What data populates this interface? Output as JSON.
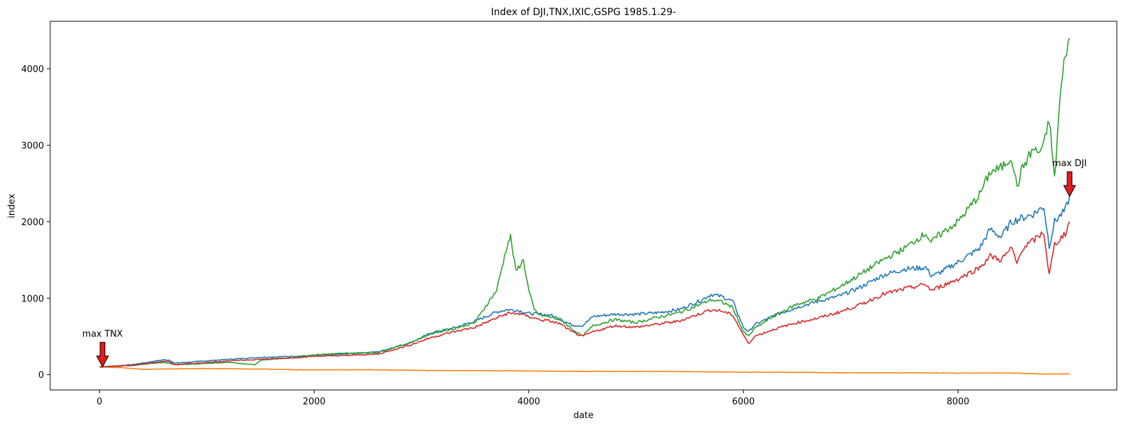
{
  "chart_data": {
    "type": "line",
    "title": "Index of DJI,TNX,IXIC,GSPG 1985.1.29-",
    "xlabel": "date",
    "ylabel": "index",
    "xlim": [
      -460,
      9480
    ],
    "ylim": [
      -200,
      4620
    ],
    "xticks": [
      0,
      2000,
      4000,
      6000,
      8000
    ],
    "yticks": [
      0,
      1000,
      2000,
      3000,
      4000
    ],
    "xtick_labels": [
      "0",
      "2000",
      "4000",
      "6000",
      "8000"
    ],
    "ytick_labels": [
      "0",
      "1000",
      "2000",
      "3000",
      "4000"
    ],
    "grid": false,
    "annotations": [
      {
        "text": "max TNX",
        "x": 28,
        "y": 100,
        "color": "#e41a1c"
      },
      {
        "text": "max DJI",
        "x": 9040,
        "y": 2330,
        "color": "#e41a1c"
      }
    ],
    "series": [
      {
        "color": "#1f77b4",
        "x": [
          0,
          300,
          600,
          650,
          700,
          900,
          1200,
          1500,
          1800,
          2000,
          2300,
          2600,
          2900,
          3100,
          3300,
          3500,
          3700,
          3800,
          3900,
          4000,
          4100,
          4200,
          4300,
          4400,
          4500,
          4600,
          4800,
          5000,
          5200,
          5400,
          5600,
          5700,
          5800,
          5900,
          6000,
          6050,
          6100,
          6300,
          6500,
          6700,
          6900,
          7100,
          7300,
          7500,
          7700,
          7750,
          7800,
          8000,
          8200,
          8300,
          8400,
          8500,
          8600,
          8700,
          8800,
          8850,
          8900,
          9000,
          9040
        ],
        "y": [
          100,
          130,
          195,
          190,
          150,
          170,
          200,
          225,
          240,
          250,
          270,
          300,
          420,
          550,
          610,
          700,
          820,
          850,
          840,
          800,
          790,
          780,
          720,
          650,
          640,
          760,
          790,
          790,
          810,
          850,
          970,
          1050,
          1020,
          960,
          620,
          560,
          650,
          780,
          880,
          960,
          1030,
          1150,
          1300,
          1380,
          1400,
          1300,
          1310,
          1470,
          1650,
          1900,
          1800,
          2000,
          2050,
          2100,
          2200,
          1680,
          2000,
          2150,
          2330
        ]
      },
      {
        "color": "#ff7f0e",
        "x": [
          0,
          200,
          400,
          700,
          1000,
          1500,
          2000,
          2500,
          3000,
          3500,
          4000,
          4500,
          5000,
          5500,
          6000,
          6500,
          7000,
          7500,
          8000,
          8500,
          8800,
          9000,
          9040
        ],
        "y": [
          100,
          92,
          70,
          75,
          80,
          72,
          62,
          65,
          55,
          52,
          48,
          42,
          42,
          40,
          32,
          30,
          24,
          24,
          20,
          22,
          8,
          10,
          12
        ]
      },
      {
        "color": "#2ca02c",
        "x": [
          0,
          300,
          600,
          700,
          900,
          1200,
          1450,
          1500,
          1800,
          2000,
          2300,
          2600,
          2900,
          3100,
          3300,
          3500,
          3600,
          3700,
          3800,
          3830,
          3880,
          3950,
          4000,
          4050,
          4100,
          4200,
          4300,
          4400,
          4500,
          4600,
          4800,
          5000,
          5200,
          5400,
          5600,
          5700,
          5800,
          5900,
          6000,
          6050,
          6100,
          6300,
          6500,
          6700,
          6900,
          7100,
          7300,
          7500,
          7700,
          7750,
          7800,
          8000,
          8200,
          8300,
          8400,
          8500,
          8550,
          8600,
          8700,
          8750,
          8800,
          8850,
          8900,
          8950,
          9000,
          9040
        ],
        "y": [
          100,
          120,
          160,
          130,
          140,
          160,
          130,
          190,
          220,
          260,
          280,
          290,
          420,
          540,
          600,
          680,
          900,
          1100,
          1700,
          1800,
          1350,
          1500,
          1100,
          850,
          780,
          750,
          720,
          600,
          500,
          640,
          720,
          680,
          750,
          810,
          920,
          980,
          950,
          880,
          560,
          500,
          600,
          780,
          920,
          1000,
          1150,
          1320,
          1500,
          1650,
          1850,
          1720,
          1800,
          2000,
          2350,
          2650,
          2700,
          2850,
          2450,
          2700,
          2950,
          2900,
          3000,
          3350,
          2550,
          3600,
          4200,
          4400
        ]
      },
      {
        "color": "#d62728",
        "x": [
          0,
          300,
          600,
          650,
          700,
          900,
          1200,
          1500,
          1800,
          2000,
          2300,
          2600,
          2900,
          3100,
          3300,
          3500,
          3700,
          3800,
          3900,
          4000,
          4100,
          4200,
          4300,
          4400,
          4500,
          4600,
          4800,
          5000,
          5200,
          5400,
          5600,
          5700,
          5800,
          5900,
          6000,
          6050,
          6100,
          6300,
          6500,
          6700,
          6900,
          7100,
          7300,
          7500,
          7700,
          7750,
          7800,
          8000,
          8200,
          8300,
          8400,
          8500,
          8550,
          8600,
          8700,
          8800,
          8850,
          8900,
          9000,
          9040
        ],
        "y": [
          100,
          120,
          175,
          170,
          130,
          150,
          180,
          200,
          220,
          240,
          250,
          270,
          390,
          490,
          560,
          620,
          740,
          800,
          800,
          760,
          720,
          700,
          660,
          560,
          500,
          560,
          640,
          620,
          660,
          700,
          800,
          850,
          830,
          780,
          520,
          400,
          500,
          600,
          680,
          740,
          820,
          920,
          1050,
          1120,
          1180,
          1100,
          1130,
          1250,
          1400,
          1550,
          1500,
          1650,
          1450,
          1650,
          1750,
          1860,
          1300,
          1700,
          1850,
          2000
        ]
      }
    ]
  }
}
